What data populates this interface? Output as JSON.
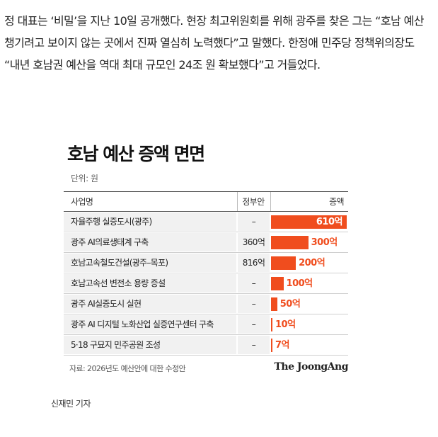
{
  "article": {
    "paragraph": "정 대표는 ‘비밀’을 지난 10일 공개했다. 현장 최고위원회를 위해 광주를 찾은 그는 “호남 예산 챙기려고 보이지 않는 곳에서 진짜 열심히 노력했다”고 말했다. 한정애 민주당 정책위의장도 “내년 호남권 예산을 역대 최대 규모인 24조 원 확보했다”고 거들었다."
  },
  "graphic": {
    "title": "호남 예산 증액 면면",
    "unit": "단위: 원",
    "source": "자료: 2026년도 예산안에 대한 수정안",
    "brand": "The JoongAng"
  },
  "chart_data": {
    "type": "table",
    "title": "호남 예산 증액 면면",
    "unit": "단위: 원",
    "columns": [
      "사업명",
      "정부안",
      "증액"
    ],
    "rows": [
      {
        "name": "자율주행 실증도시(광주)",
        "gov": "–",
        "increase": "610억",
        "increase_value": 610
      },
      {
        "name": "광주 AI의료생태계 구축",
        "gov": "360억",
        "increase": "300억",
        "increase_value": 300
      },
      {
        "name": "호남고속철도건설(광주–목포)",
        "gov": "816억",
        "increase": "200억",
        "increase_value": 200
      },
      {
        "name": "호남고속선 변전소 용량 증설",
        "gov": "–",
        "increase": "100억",
        "increase_value": 100
      },
      {
        "name": "광주 AI실증도시 실현",
        "gov": "–",
        "increase": "50억",
        "increase_value": 50
      },
      {
        "name": "광주 AI 디지털 노화산업 실증연구센터 구축",
        "gov": "–",
        "increase": "10억",
        "increase_value": 10
      },
      {
        "name": "5·18 구묘지 민주공원 조성",
        "gov": "–",
        "increase": "7억",
        "increase_value": 7
      }
    ],
    "bar_color": "#f04d1e",
    "source": "자료: 2026년도 예산안에 대한 수정안"
  },
  "byline": "신재민 기자"
}
